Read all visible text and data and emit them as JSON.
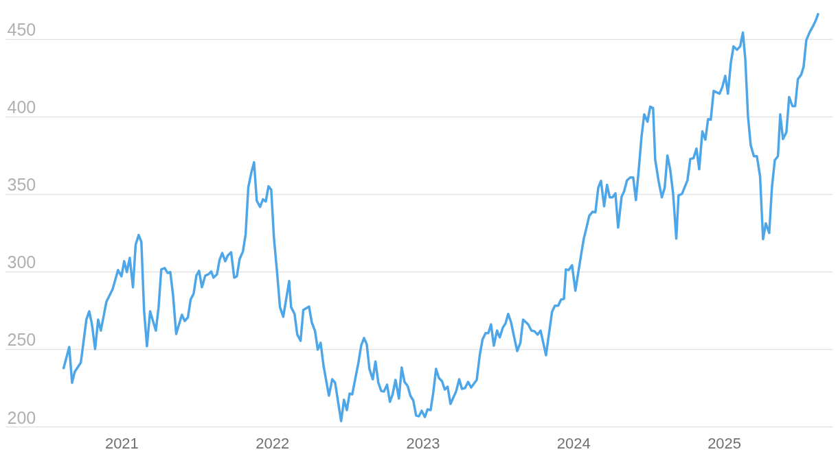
{
  "chart_data": {
    "type": "line",
    "grid": "y",
    "xlim": [
      2020.23,
      2025.72
    ],
    "ylim": [
      200,
      475
    ],
    "xticks": [
      2021,
      2022,
      2023,
      2024,
      2025
    ],
    "yticks": [
      200,
      250,
      300,
      350,
      400,
      450
    ],
    "series": [
      {
        "color": "#4da6e8",
        "x": [
          2020.616,
          2020.653,
          2020.672,
          2020.69,
          2020.73,
          2020.767,
          2020.786,
          2020.804,
          2020.825,
          2020.845,
          2020.863,
          2020.9,
          2020.941,
          2020.977,
          2021.0,
          2021.018,
          2021.036,
          2021.055,
          2021.076,
          2021.094,
          2021.114,
          2021.132,
          2021.15,
          2021.169,
          2021.19,
          2021.228,
          2021.246,
          2021.264,
          2021.287,
          2021.306,
          2021.324,
          2021.342,
          2021.363,
          2021.401,
          2021.42,
          2021.441,
          2021.459,
          2021.479,
          2021.497,
          2021.515,
          2021.534,
          2021.556,
          2021.578,
          2021.596,
          2021.611,
          2021.634,
          2021.651,
          2021.669,
          2021.689,
          2021.705,
          2021.728,
          2021.748,
          2021.766,
          2021.784,
          2021.806,
          2021.824,
          2021.842,
          2021.862,
          2021.88,
          2021.898,
          2021.92,
          2021.939,
          2021.958,
          2021.976,
          2021.994,
          2022.012,
          2022.034,
          2022.052,
          2022.074,
          2022.113,
          2022.126,
          2022.149,
          2022.167,
          2022.189,
          2022.207,
          2022.245,
          2022.263,
          2022.285,
          2022.303,
          2022.322,
          2022.341,
          2022.377,
          2022.399,
          2022.418,
          2022.458,
          2022.477,
          2022.496,
          2022.514,
          2022.532,
          2022.554,
          2022.572,
          2022.591,
          2022.61,
          2022.628,
          2022.646,
          2022.668,
          2022.686,
          2022.705,
          2022.724,
          2022.742,
          2022.763,
          2022.782,
          2022.8,
          2022.819,
          2022.842,
          2022.86,
          2022.879,
          2022.9,
          2022.918,
          2022.937,
          2022.956,
          2022.974,
          2022.993,
          2023.014,
          2023.032,
          2023.052,
          2023.07,
          2023.088,
          2023.107,
          2023.128,
          2023.146,
          2023.165,
          2023.184,
          2023.202,
          2023.221,
          2023.242,
          2023.26,
          2023.28,
          2023.301,
          2023.321,
          2023.358,
          2023.379,
          2023.397,
          2023.417,
          2023.435,
          2023.453,
          2023.472,
          2023.493,
          2023.511,
          2023.531,
          2023.549,
          2023.567,
          2023.586,
          2023.607,
          2023.627,
          2023.648,
          2023.666,
          2023.7,
          2023.721,
          2023.741,
          2023.762,
          2023.782,
          2023.8,
          2023.818,
          2023.858,
          2023.877,
          2023.899,
          2023.918,
          2023.937,
          2023.95,
          2023.969,
          2023.991,
          2024.013,
          2024.051,
          2024.069,
          2024.087,
          2024.105,
          2024.127,
          2024.146,
          2024.165,
          2024.183,
          2024.204,
          2024.223,
          2024.241,
          2024.26,
          2024.279,
          2024.297,
          2024.32,
          2024.337,
          2024.356,
          2024.378,
          2024.397,
          2024.415,
          2024.434,
          2024.452,
          2024.47,
          2024.492,
          2024.51,
          2024.529,
          2024.543,
          2024.566,
          2024.587,
          2024.606,
          2024.624,
          2024.643,
          2024.662,
          2024.683,
          2024.698,
          2024.721,
          2024.757,
          2024.776,
          2024.797,
          2024.817,
          2024.835,
          2024.856,
          2024.876,
          2024.894,
          2024.912,
          2024.931,
          2024.97,
          2024.989,
          2025.008,
          2025.026,
          2025.045,
          2025.063,
          2025.086,
          2025.107,
          2025.125,
          2025.141,
          2025.159,
          2025.177,
          2025.198,
          2025.218,
          2025.239,
          2025.259,
          2025.277,
          2025.3,
          2025.318,
          2025.337,
          2025.358,
          2025.373,
          2025.391,
          2025.414,
          2025.432,
          2025.454,
          2025.472,
          2025.49,
          2025.513,
          2025.528,
          2025.546,
          2025.569,
          2025.592,
          2025.609,
          2025.624
        ],
        "values": [
          237.7,
          251.3,
          228.3,
          235.4,
          241.2,
          269.0,
          274.3,
          265.9,
          250.0,
          269.0,
          261.9,
          280.5,
          288.5,
          300.9,
          296.9,
          306.6,
          299.6,
          308.8,
          289.8,
          317.3,
          323.5,
          319.0,
          274.8,
          251.8,
          274.3,
          261.9,
          276.5,
          301.3,
          302.2,
          299.1,
          299.6,
          285.0,
          259.7,
          272.1,
          268.1,
          270.4,
          281.9,
          285.8,
          297.3,
          300.4,
          289.8,
          297.3,
          298.2,
          300.0,
          296.0,
          298.2,
          307.5,
          311.9,
          306.6,
          310.2,
          312.4,
          296.0,
          296.9,
          308.0,
          312.8,
          323.9,
          354.4,
          363.7,
          370.4,
          345.6,
          341.6,
          346.5,
          345.1,
          354.9,
          352.7,
          321.7,
          298.2,
          277.0,
          270.8,
          293.8,
          277.0,
          272.6,
          259.3,
          255.3,
          275.2,
          277.4,
          267.3,
          261.5,
          249.6,
          254.0,
          239.4,
          219.9,
          230.5,
          228.3,
          203.5,
          217.3,
          210.6,
          221.2,
          220.8,
          231.9,
          240.7,
          252.2,
          257.1,
          253.1,
          237.2,
          230.5,
          242.0,
          228.3,
          223.0,
          222.6,
          227.0,
          215.9,
          220.8,
          230.1,
          218.1,
          238.1,
          228.8,
          226.1,
          219.9,
          216.8,
          207.1,
          206.6,
          210.2,
          206.2,
          211.1,
          210.6,
          222.1,
          237.2,
          231.4,
          229.2,
          223.9,
          225.7,
          214.6,
          218.6,
          222.6,
          230.5,
          224.3,
          224.8,
          228.8,
          225.2,
          230.1,
          246.5,
          256.2,
          260.2,
          260.2,
          265.9,
          252.2,
          261.9,
          257.5,
          263.7,
          266.4,
          272.6,
          267.3,
          257.5,
          248.7,
          254.0,
          269.0,
          265.9,
          261.9,
          261.5,
          259.3,
          261.9,
          254.0,
          246.0,
          273.9,
          277.9,
          277.9,
          281.9,
          282.3,
          301.3,
          300.9,
          304.0,
          287.6,
          310.6,
          321.2,
          328.3,
          335.8,
          338.5,
          338.1,
          354.0,
          358.4,
          342.0,
          355.8,
          347.8,
          347.8,
          350.4,
          328.3,
          348.2,
          351.8,
          358.8,
          360.6,
          360.6,
          346.0,
          365.9,
          386.7,
          401.3,
          396.5,
          406.2,
          405.3,
          372.1,
          358.0,
          347.8,
          354.0,
          374.8,
          365.5,
          350.0,
          321.2,
          349.1,
          350.0,
          358.8,
          372.6,
          373.0,
          379.2,
          365.9,
          390.3,
          385.0,
          398.2,
          397.8,
          416.4,
          414.6,
          419.0,
          426.1,
          414.6,
          434.5,
          445.1,
          442.9,
          445.1,
          454.0,
          437.2,
          400.0,
          381.4,
          374.3,
          374.3,
          361.5,
          320.8,
          331.0,
          324.8,
          354.4,
          371.7,
          374.3,
          401.3,
          385.4,
          389.8,
          412.4,
          406.6,
          406.6,
          423.9,
          427.0,
          431.9,
          449.1,
          454.4,
          458.4,
          461.9,
          465.9
        ]
      }
    ]
  }
}
